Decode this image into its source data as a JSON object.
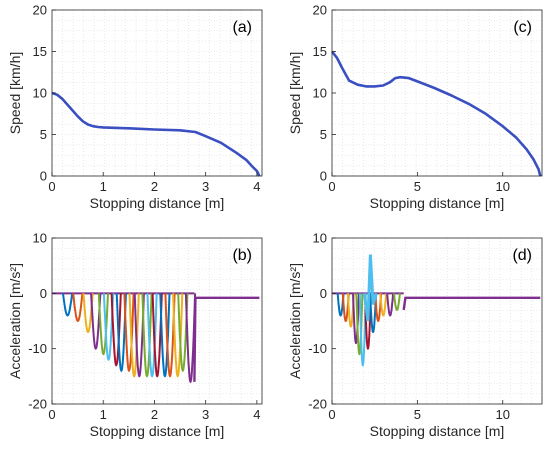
{
  "chart_data": [
    {
      "id": "a",
      "type": "line",
      "panel_label": "(a)",
      "xlabel": "Stopping distance [m]",
      "ylabel": "Speed [km/h]",
      "xlim": [
        0,
        4.1
      ],
      "ylim": [
        0,
        20
      ],
      "xticks": [
        0,
        1,
        2,
        3,
        4
      ],
      "yticks": [
        0,
        5,
        10,
        15,
        20
      ],
      "grid": true,
      "series": [
        {
          "color": "#3a4fc1",
          "x": [
            0,
            0.1,
            0.2,
            0.3,
            0.4,
            0.5,
            0.6,
            0.7,
            0.8,
            0.9,
            1.0,
            1.5,
            2.0,
            2.5,
            2.8,
            3.0,
            3.3,
            3.6,
            3.8,
            3.9,
            4.0,
            4.05
          ],
          "y": [
            10,
            9.8,
            9.3,
            8.6,
            7.9,
            7.2,
            6.6,
            6.2,
            6.0,
            5.9,
            5.85,
            5.75,
            5.6,
            5.5,
            5.3,
            4.8,
            4.0,
            2.8,
            1.9,
            1.2,
            0.6,
            0
          ]
        }
      ]
    },
    {
      "id": "c",
      "type": "line",
      "panel_label": "(c)",
      "xlabel": "Stopping distance [m]",
      "ylabel": "Speed [km/h]",
      "xlim": [
        0,
        12.3
      ],
      "ylim": [
        0,
        20
      ],
      "xticks": [
        0,
        5,
        10
      ],
      "yticks": [
        0,
        5,
        10,
        15,
        20
      ],
      "grid": true,
      "series": [
        {
          "color": "#3a4fc1",
          "x": [
            0,
            0.3,
            0.6,
            1.0,
            1.5,
            2.0,
            2.5,
            3.0,
            3.4,
            3.7,
            4.0,
            4.5,
            5.0,
            6.0,
            7.0,
            8.0,
            9.0,
            10.0,
            10.8,
            11.4,
            11.8,
            12.1,
            12.2
          ],
          "y": [
            15,
            14.2,
            13.0,
            11.5,
            11.0,
            10.8,
            10.8,
            10.9,
            11.3,
            11.8,
            11.9,
            11.8,
            11.4,
            10.6,
            9.7,
            8.7,
            7.5,
            6.0,
            4.6,
            3.2,
            2.0,
            0.8,
            0
          ]
        }
      ]
    },
    {
      "id": "b",
      "type": "line",
      "panel_label": "(b)",
      "xlabel": "Stopping distance [m]",
      "ylabel": "Acceleration [m/s²]",
      "xlim": [
        0,
        4.1
      ],
      "ylim": [
        -20,
        10
      ],
      "xticks": [
        0,
        1,
        2,
        3,
        4
      ],
      "yticks": [
        -20,
        -10,
        0,
        10
      ],
      "grid": true,
      "oscillation_series": [
        {
          "color": "#0072bd",
          "start": 0.25,
          "min": -4
        },
        {
          "color": "#d95319",
          "start": 0.45,
          "min": -5
        },
        {
          "color": "#edb120",
          "start": 0.65,
          "min": -7
        },
        {
          "color": "#7e2f8e",
          "start": 0.8,
          "min": -10
        },
        {
          "color": "#77ac30",
          "start": 0.95,
          "min": -11
        },
        {
          "color": "#4dbeee",
          "start": 1.05,
          "min": -12
        },
        {
          "color": "#a2142f",
          "start": 1.2,
          "min": -13
        },
        {
          "color": "#0072bd",
          "start": 1.3,
          "min": -14
        },
        {
          "color": "#d95319",
          "start": 1.45,
          "min": -14
        },
        {
          "color": "#edb120",
          "start": 1.55,
          "min": -15
        },
        {
          "color": "#7e2f8e",
          "start": 1.65,
          "min": -15
        },
        {
          "color": "#77ac30",
          "start": 1.8,
          "min": -15
        },
        {
          "color": "#4dbeee",
          "start": 1.9,
          "min": -15
        },
        {
          "color": "#a2142f",
          "start": 2.0,
          "min": -15
        },
        {
          "color": "#0072bd",
          "start": 2.15,
          "min": -15
        },
        {
          "color": "#d95319",
          "start": 2.25,
          "min": -15
        },
        {
          "color": "#edb120",
          "start": 2.4,
          "min": -15
        },
        {
          "color": "#77ac30",
          "start": 2.5,
          "min": -14
        },
        {
          "color": "#7e2f8e",
          "start": 2.65,
          "min": -16
        }
      ],
      "final_series": {
        "color": "#7e2f8e",
        "x": [
          2.78,
          2.8,
          4.05
        ],
        "y": [
          -16,
          -0.8,
          -0.8
        ]
      }
    },
    {
      "id": "d",
      "type": "line",
      "panel_label": "(d)",
      "xlabel": "Stopping distance [m]",
      "ylabel": "Acceleration [m/s²]",
      "xlim": [
        0,
        12.3
      ],
      "ylim": [
        -20,
        10
      ],
      "xticks": [
        0,
        5,
        10
      ],
      "yticks": [
        -20,
        -10,
        0,
        10
      ],
      "grid": true,
      "oscillation_series": [
        {
          "color": "#0072bd",
          "start": 0.4,
          "min": -4
        },
        {
          "color": "#d95319",
          "start": 0.7,
          "min": -5
        },
        {
          "color": "#edb120",
          "start": 1.0,
          "min": -6
        },
        {
          "color": "#7e2f8e",
          "start": 1.3,
          "min": -9
        },
        {
          "color": "#77ac30",
          "start": 1.5,
          "min": -11
        },
        {
          "color": "#4dbeee",
          "start": 1.7,
          "min": -13
        },
        {
          "color": "#a2142f",
          "start": 2.0,
          "min": -10
        },
        {
          "color": "#0072bd",
          "start": 2.3,
          "min": -7
        },
        {
          "color": "#d95319",
          "start": 2.6,
          "min": -5
        },
        {
          "color": "#edb120",
          "start": 2.9,
          "min": -4
        },
        {
          "color": "#7e2f8e",
          "start": 3.3,
          "min": -4
        },
        {
          "color": "#77ac30",
          "start": 3.7,
          "min": -3
        }
      ],
      "spike": {
        "color": "#4dbeee",
        "x": [
          1.9,
          2.1,
          2.25,
          2.4,
          2.6
        ],
        "y": [
          0,
          -5,
          7,
          -2,
          0
        ]
      },
      "final_series": {
        "color": "#7e2f8e",
        "x": [
          4.2,
          4.3,
          12.2
        ],
        "y": [
          -3,
          -0.8,
          -0.8
        ]
      }
    }
  ]
}
